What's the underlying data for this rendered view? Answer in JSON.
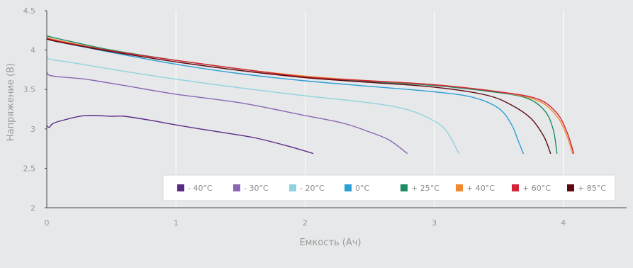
{
  "chart_data": {
    "type": "line",
    "title": "",
    "xlabel": "Емкость (Ач)",
    "ylabel": "Напряжение (В)",
    "xlim": [
      0,
      4.5
    ],
    "ylim": [
      2,
      4.5
    ],
    "x_ticks": [
      "0",
      "1",
      "2",
      "3",
      "4"
    ],
    "y_ticks": [
      "2",
      "2.5",
      "3",
      "3.5",
      "4",
      "4.5"
    ],
    "grid": "vertical",
    "legend_position": "bottom-right inside",
    "series": [
      {
        "name": "- 40°C",
        "color": "#5b2a86",
        "points": [
          [
            0,
            3.04
          ],
          [
            0.02,
            3.02
          ],
          [
            0.05,
            3.07
          ],
          [
            0.15,
            3.12
          ],
          [
            0.3,
            3.17
          ],
          [
            0.5,
            3.16
          ],
          [
            0.6,
            3.16
          ],
          [
            0.8,
            3.11
          ],
          [
            1.0,
            3.05
          ],
          [
            1.3,
            2.97
          ],
          [
            1.6,
            2.89
          ],
          [
            1.85,
            2.79
          ],
          [
            2.06,
            2.69
          ]
        ]
      },
      {
        "name": "- 30°C",
        "color": "#8a66b3",
        "points": [
          [
            0,
            3.72
          ],
          [
            0.02,
            3.68
          ],
          [
            0.1,
            3.66
          ],
          [
            0.3,
            3.63
          ],
          [
            0.6,
            3.55
          ],
          [
            1.0,
            3.44
          ],
          [
            1.5,
            3.33
          ],
          [
            2.0,
            3.17
          ],
          [
            2.3,
            3.07
          ],
          [
            2.5,
            2.96
          ],
          [
            2.65,
            2.86
          ],
          [
            2.79,
            2.69
          ]
        ]
      },
      {
        "name": "- 20°C",
        "color": "#8fd3e0",
        "points": [
          [
            0,
            3.92
          ],
          [
            0.03,
            3.88
          ],
          [
            0.2,
            3.84
          ],
          [
            0.6,
            3.73
          ],
          [
            1.0,
            3.63
          ],
          [
            1.5,
            3.52
          ],
          [
            2.0,
            3.42
          ],
          [
            2.5,
            3.33
          ],
          [
            2.8,
            3.24
          ],
          [
            3.0,
            3.1
          ],
          [
            3.1,
            2.96
          ],
          [
            3.19,
            2.69
          ]
        ]
      },
      {
        "name": "0°C",
        "color": "#2b9fd6",
        "points": [
          [
            0,
            4.14
          ],
          [
            0.1,
            4.1
          ],
          [
            0.5,
            3.97
          ],
          [
            1.0,
            3.82
          ],
          [
            1.5,
            3.7
          ],
          [
            2.0,
            3.61
          ],
          [
            2.5,
            3.54
          ],
          [
            3.0,
            3.47
          ],
          [
            3.3,
            3.4
          ],
          [
            3.5,
            3.26
          ],
          [
            3.6,
            3.05
          ],
          [
            3.65,
            2.85
          ],
          [
            3.69,
            2.69
          ]
        ]
      },
      {
        "name": "+ 25°C",
        "color": "#1c8c63",
        "points": [
          [
            0,
            4.18
          ],
          [
            0.1,
            4.14
          ],
          [
            0.5,
            4.0
          ],
          [
            1.0,
            3.87
          ],
          [
            1.5,
            3.76
          ],
          [
            2.0,
            3.66
          ],
          [
            2.5,
            3.6
          ],
          [
            3.0,
            3.55
          ],
          [
            3.4,
            3.48
          ],
          [
            3.7,
            3.4
          ],
          [
            3.85,
            3.24
          ],
          [
            3.92,
            3.0
          ],
          [
            3.95,
            2.69
          ]
        ]
      },
      {
        "name": "+ 40°C",
        "color": "#f08a2e",
        "points": [
          [
            0,
            4.16
          ],
          [
            0.1,
            4.12
          ],
          [
            0.5,
            3.99
          ],
          [
            1.0,
            3.87
          ],
          [
            1.5,
            3.76
          ],
          [
            2.0,
            3.67
          ],
          [
            2.5,
            3.61
          ],
          [
            3.0,
            3.56
          ],
          [
            3.5,
            3.47
          ],
          [
            3.8,
            3.36
          ],
          [
            3.95,
            3.16
          ],
          [
            4.03,
            2.9
          ],
          [
            4.07,
            2.69
          ]
        ]
      },
      {
        "name": "+ 60°C",
        "color": "#d1233a",
        "points": [
          [
            0,
            4.15
          ],
          [
            0.1,
            4.11
          ],
          [
            0.5,
            3.99
          ],
          [
            1.0,
            3.87
          ],
          [
            1.5,
            3.76
          ],
          [
            2.0,
            3.66
          ],
          [
            2.5,
            3.61
          ],
          [
            3.0,
            3.56
          ],
          [
            3.5,
            3.47
          ],
          [
            3.8,
            3.38
          ],
          [
            3.95,
            3.2
          ],
          [
            4.03,
            2.95
          ],
          [
            4.08,
            2.69
          ]
        ]
      },
      {
        "name": "+ 85°C",
        "color": "#5c0a12",
        "points": [
          [
            0,
            4.14
          ],
          [
            0.1,
            4.1
          ],
          [
            0.5,
            3.98
          ],
          [
            1.0,
            3.85
          ],
          [
            1.5,
            3.74
          ],
          [
            2.0,
            3.65
          ],
          [
            2.5,
            3.59
          ],
          [
            3.0,
            3.53
          ],
          [
            3.4,
            3.43
          ],
          [
            3.6,
            3.3
          ],
          [
            3.75,
            3.13
          ],
          [
            3.85,
            2.9
          ],
          [
            3.9,
            2.69
          ]
        ]
      }
    ]
  }
}
